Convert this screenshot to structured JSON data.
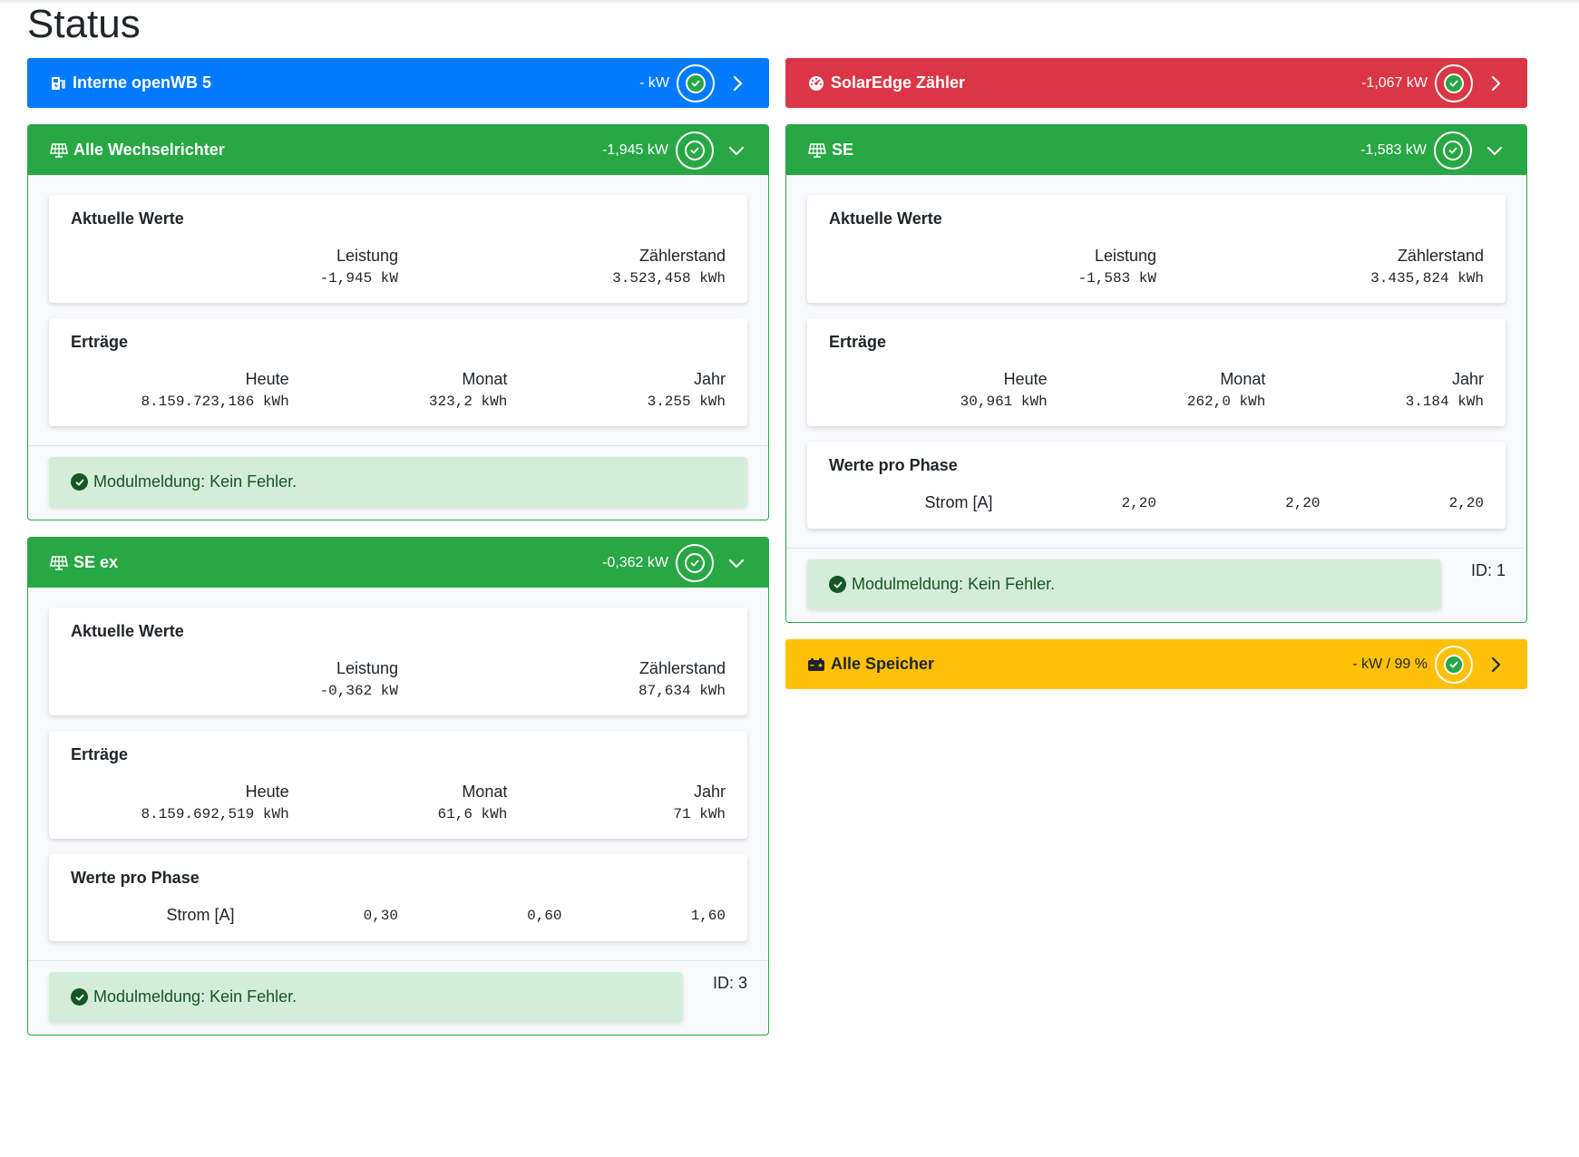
{
  "page": {
    "title": "Status"
  },
  "left_column": [
    {
      "key": "openwb",
      "title": "Interne openWB 5",
      "icon": "charging-station-icon",
      "value": "- kW",
      "color": "#007bff",
      "state": "collapsed"
    },
    {
      "key": "wechselrichter",
      "title": "Alle Wechselrichter",
      "icon": "solar-panel-icon",
      "value": "-1,945 kW",
      "color": "#28a745",
      "state": "expanded",
      "aktuelle_werte": {
        "title": "Aktuelle Werte",
        "leistung_label": "Leistung",
        "leistung_value": "-1,945 kW",
        "zaehlerstand_label": "Zählerstand",
        "zaehlerstand_value": "3.523,458 kWh"
      },
      "ertraege": {
        "title": "Erträge",
        "heute_label": "Heute",
        "heute_value": "8.159.723,186 kWh",
        "monat_label": "Monat",
        "monat_value": "323,2 kWh",
        "jahr_label": "Jahr",
        "jahr_value": "3.255 kWh"
      },
      "message": "Modulmeldung: Kein Fehler."
    },
    {
      "key": "se_ex",
      "title": "SE ex",
      "icon": "solar-panel-icon",
      "value": "-0,362 kW",
      "color": "#28a745",
      "state": "expanded",
      "aktuelle_werte": {
        "title": "Aktuelle Werte",
        "leistung_label": "Leistung",
        "leistung_value": "-0,362 kW",
        "zaehlerstand_label": "Zählerstand",
        "zaehlerstand_value": "87,634 kWh"
      },
      "ertraege": {
        "title": "Erträge",
        "heute_label": "Heute",
        "heute_value": "8.159.692,519 kWh",
        "monat_label": "Monat",
        "monat_value": "61,6 kWh",
        "jahr_label": "Jahr",
        "jahr_value": "71 kWh"
      },
      "phase": {
        "title": "Werte pro Phase",
        "label": "Strom [A]",
        "values": [
          "0,30",
          "0,60",
          "1,60"
        ]
      },
      "message": "Modulmeldung: Kein Fehler.",
      "id": "ID: 3"
    }
  ],
  "right_column": [
    {
      "key": "solaredge_zaehler",
      "title": "SolarEdge Zähler",
      "icon": "gauge-icon",
      "value": "-1,067 kW",
      "color": "#dc3545",
      "state": "collapsed"
    },
    {
      "key": "se",
      "title": "SE",
      "icon": "solar-panel-icon",
      "value": "-1,583 kW",
      "color": "#28a745",
      "state": "expanded",
      "aktuelle_werte": {
        "title": "Aktuelle Werte",
        "leistung_label": "Leistung",
        "leistung_value": "-1,583 kW",
        "zaehlerstand_label": "Zählerstand",
        "zaehlerstand_value": "3.435,824 kWh"
      },
      "ertraege": {
        "title": "Erträge",
        "heute_label": "Heute",
        "heute_value": "30,961 kWh",
        "monat_label": "Monat",
        "monat_value": "262,0 kWh",
        "jahr_label": "Jahr",
        "jahr_value": "3.184 kWh"
      },
      "phase": {
        "title": "Werte pro Phase",
        "label": "Strom [A]",
        "values": [
          "2,20",
          "2,20",
          "2,20"
        ]
      },
      "message": "Modulmeldung: Kein Fehler.",
      "id": "ID: 1"
    },
    {
      "key": "speicher",
      "title": "Alle Speicher",
      "icon": "battery-icon",
      "value": "- kW / 99 %",
      "color": "#ffc107",
      "state": "collapsed"
    }
  ]
}
